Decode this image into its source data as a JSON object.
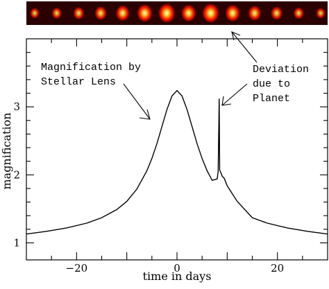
{
  "chart_data": {
    "type": "line",
    "title": "",
    "xlabel": "time in days",
    "ylabel": "magnification",
    "xlim": [
      -30,
      30
    ],
    "ylim": [
      0.75,
      4.0
    ],
    "xticks": [
      -20,
      0,
      20
    ],
    "xtick_labels": [
      "−20",
      "0",
      "20"
    ],
    "yticks": [
      1,
      2,
      3
    ],
    "ytick_labels": [
      "1",
      "2",
      "3"
    ],
    "grid": false,
    "legend": "none",
    "series": [
      {
        "x": [
          -30,
          -26,
          -22,
          -18,
          -15,
          -12,
          -10,
          -8,
          -6,
          -5,
          -4,
          -3,
          -2,
          -1,
          0,
          1,
          2,
          3,
          4,
          5,
          6,
          7,
          8,
          8.2,
          8.4,
          8.5,
          8.8,
          9.0,
          9.4,
          10,
          12,
          15,
          18,
          22,
          26,
          30
        ],
        "y": [
          1.13,
          1.17,
          1.22,
          1.29,
          1.37,
          1.49,
          1.61,
          1.79,
          2.06,
          2.24,
          2.46,
          2.71,
          2.96,
          3.16,
          3.24,
          3.16,
          2.96,
          2.71,
          2.46,
          2.24,
          2.06,
          1.92,
          1.94,
          2.05,
          3.12,
          2.07,
          2.02,
          1.98,
          1.95,
          1.84,
          1.61,
          1.37,
          1.29,
          1.22,
          1.17,
          1.13
        ],
        "color": "#000000"
      }
    ],
    "annotations": [
      {
        "text_lines": [
          "Magnification by",
          "Stellar Lens"
        ]
      },
      {
        "text_lines": [
          "Deviation",
          "due to",
          "Planet"
        ]
      }
    ]
  },
  "image_strip": {
    "description_colors": [
      "#2b0000",
      "#b30000",
      "#ff3300",
      "#ffcc00",
      "#ffffcc"
    ],
    "spot_intensity": [
      0.55,
      0.6,
      0.65,
      0.72,
      0.82,
      0.92,
      1.0,
      0.88,
      1.0,
      0.88,
      0.78,
      0.7,
      0.62,
      0.55
    ]
  }
}
